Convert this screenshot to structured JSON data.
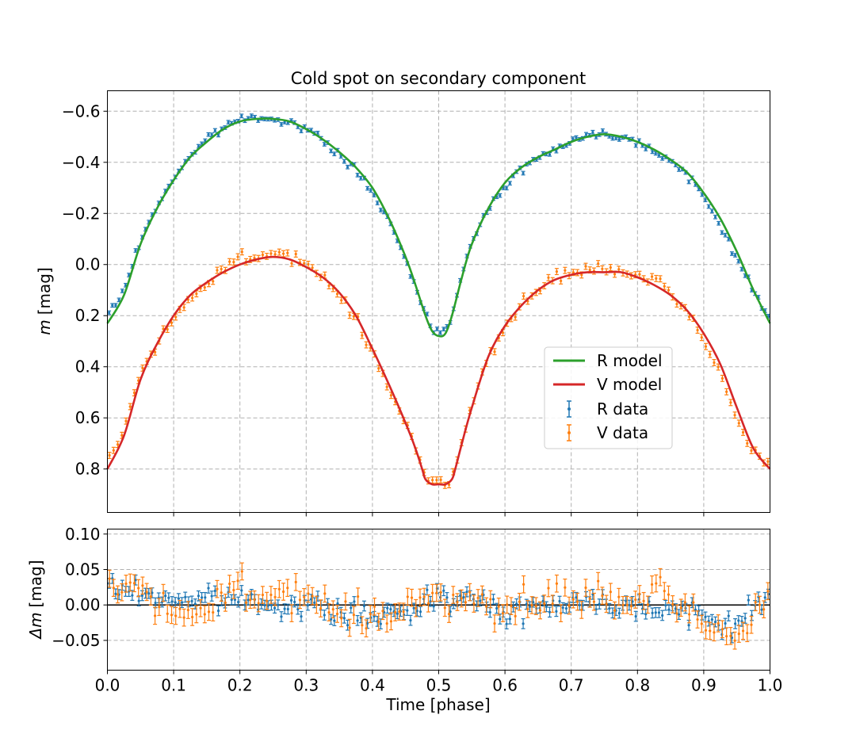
{
  "chart_data": [
    {
      "type": "scatter",
      "title": "Cold spot on secondary component",
      "xlabel": "",
      "ylabel": "m [mag]",
      "ylabel_italic": "m",
      "ylabel_unit": "[mag]",
      "xlim": [
        0.0,
        1.0
      ],
      "ylim": [
        0.97,
        -0.68
      ],
      "y_inverted": true,
      "grid": true,
      "xticks": [
        0.1,
        0.2,
        0.3,
        0.4,
        0.5,
        0.6,
        0.7,
        0.8,
        0.9
      ],
      "yticks": [
        -0.6,
        -0.4,
        -0.2,
        0.0,
        0.2,
        0.4,
        0.6,
        0.8
      ],
      "ytick_labels": [
        "−0.6",
        "−0.4",
        "−0.2",
        "0.0",
        "0.2",
        "0.4",
        "0.6",
        "0.8"
      ],
      "legend_position": "center-right",
      "legend": [
        "R model",
        "V model",
        "R data",
        "V data"
      ],
      "series": [
        {
          "name": "R model",
          "kind": "line",
          "color": "#2ca02c",
          "x": [
            0.0,
            0.025,
            0.05,
            0.075,
            0.1,
            0.125,
            0.15,
            0.175,
            0.2,
            0.225,
            0.25,
            0.275,
            0.3,
            0.325,
            0.35,
            0.375,
            0.4,
            0.425,
            0.45,
            0.465,
            0.48,
            0.49,
            0.5,
            0.51,
            0.52,
            0.535,
            0.55,
            0.575,
            0.6,
            0.625,
            0.65,
            0.675,
            0.7,
            0.725,
            0.75,
            0.775,
            0.8,
            0.825,
            0.85,
            0.875,
            0.9,
            0.925,
            0.95,
            0.975,
            1.0
          ],
          "y": [
            0.23,
            0.12,
            -0.08,
            -0.22,
            -0.33,
            -0.42,
            -0.48,
            -0.53,
            -0.56,
            -0.57,
            -0.57,
            -0.56,
            -0.53,
            -0.49,
            -0.44,
            -0.38,
            -0.3,
            -0.18,
            -0.03,
            0.08,
            0.2,
            0.26,
            0.28,
            0.27,
            0.2,
            0.05,
            -0.08,
            -0.22,
            -0.32,
            -0.38,
            -0.42,
            -0.45,
            -0.48,
            -0.5,
            -0.51,
            -0.5,
            -0.48,
            -0.45,
            -0.41,
            -0.36,
            -0.28,
            -0.18,
            -0.05,
            0.1,
            0.23
          ]
        },
        {
          "name": "V model",
          "kind": "line",
          "color": "#d62728",
          "x": [
            0.0,
            0.025,
            0.05,
            0.075,
            0.1,
            0.125,
            0.15,
            0.175,
            0.2,
            0.225,
            0.25,
            0.275,
            0.3,
            0.325,
            0.35,
            0.375,
            0.4,
            0.425,
            0.45,
            0.465,
            0.475,
            0.48,
            0.49,
            0.5,
            0.51,
            0.52,
            0.525,
            0.535,
            0.55,
            0.575,
            0.6,
            0.625,
            0.65,
            0.675,
            0.7,
            0.725,
            0.75,
            0.775,
            0.8,
            0.825,
            0.85,
            0.875,
            0.9,
            0.925,
            0.95,
            0.975,
            1.0
          ],
          "y": [
            0.8,
            0.67,
            0.45,
            0.31,
            0.2,
            0.12,
            0.07,
            0.03,
            0.0,
            -0.02,
            -0.03,
            -0.02,
            0.01,
            0.05,
            0.11,
            0.2,
            0.33,
            0.47,
            0.62,
            0.72,
            0.8,
            0.84,
            0.86,
            0.86,
            0.86,
            0.84,
            0.8,
            0.7,
            0.56,
            0.36,
            0.24,
            0.16,
            0.1,
            0.06,
            0.04,
            0.03,
            0.03,
            0.03,
            0.05,
            0.08,
            0.12,
            0.18,
            0.27,
            0.39,
            0.56,
            0.72,
            0.8
          ]
        },
        {
          "name": "R data",
          "kind": "errorbar",
          "color": "#1f77b4",
          "model": "R model",
          "n": 200,
          "yerr": 0.007
        },
        {
          "name": "V data",
          "kind": "errorbar",
          "color": "#ff7f0e",
          "model": "V model",
          "n": 160,
          "yerr": 0.012
        }
      ]
    },
    {
      "type": "scatter",
      "title": "",
      "xlabel": "Time [phase]",
      "ylabel": "Δm [mag]",
      "ylabel_italic": "Δm",
      "ylabel_unit": "[mag]",
      "xlim": [
        0.0,
        1.0
      ],
      "ylim": [
        -0.092,
        0.107
      ],
      "grid": true,
      "zero_line": 0.0,
      "xticks": [
        0.0,
        0.1,
        0.2,
        0.3,
        0.4,
        0.5,
        0.6,
        0.7,
        0.8,
        0.9,
        1.0
      ],
      "xtick_labels": [
        "0.0",
        "0.1",
        "0.2",
        "0.3",
        "0.4",
        "0.5",
        "0.6",
        "0.7",
        "0.8",
        "0.9",
        "1.0"
      ],
      "yticks": [
        -0.05,
        0.0,
        0.05,
        0.1
      ],
      "ytick_labels": [
        "−0.05",
        "0.00",
        "0.05",
        "0.10"
      ],
      "series": [
        {
          "name": "R data",
          "kind": "errorbar",
          "color": "#1f77b4",
          "n": 200,
          "yerr": 0.007,
          "trend_x": [
            0.0,
            0.1,
            0.2,
            0.3,
            0.4,
            0.45,
            0.5,
            0.55,
            0.6,
            0.7,
            0.8,
            0.85,
            0.9,
            0.95,
            1.0
          ],
          "trend_y": [
            0.025,
            0.008,
            0.008,
            -0.002,
            -0.018,
            -0.015,
            0.02,
            0.005,
            -0.01,
            0.006,
            0.0,
            -0.005,
            -0.02,
            -0.028,
            0.015
          ]
        },
        {
          "name": "V data",
          "kind": "errorbar",
          "color": "#ff7f0e",
          "n": 160,
          "yerr": 0.012,
          "trend_x": [
            0.0,
            0.05,
            0.1,
            0.15,
            0.2,
            0.25,
            0.3,
            0.4,
            0.5,
            0.6,
            0.7,
            0.8,
            0.85,
            0.9,
            0.95,
            1.0
          ],
          "trend_y": [
            0.04,
            0.02,
            -0.02,
            -0.01,
            0.04,
            0.0,
            0.01,
            -0.02,
            0.02,
            -0.01,
            0.01,
            0.005,
            0.01,
            -0.03,
            -0.045,
            0.02
          ]
        }
      ]
    }
  ]
}
